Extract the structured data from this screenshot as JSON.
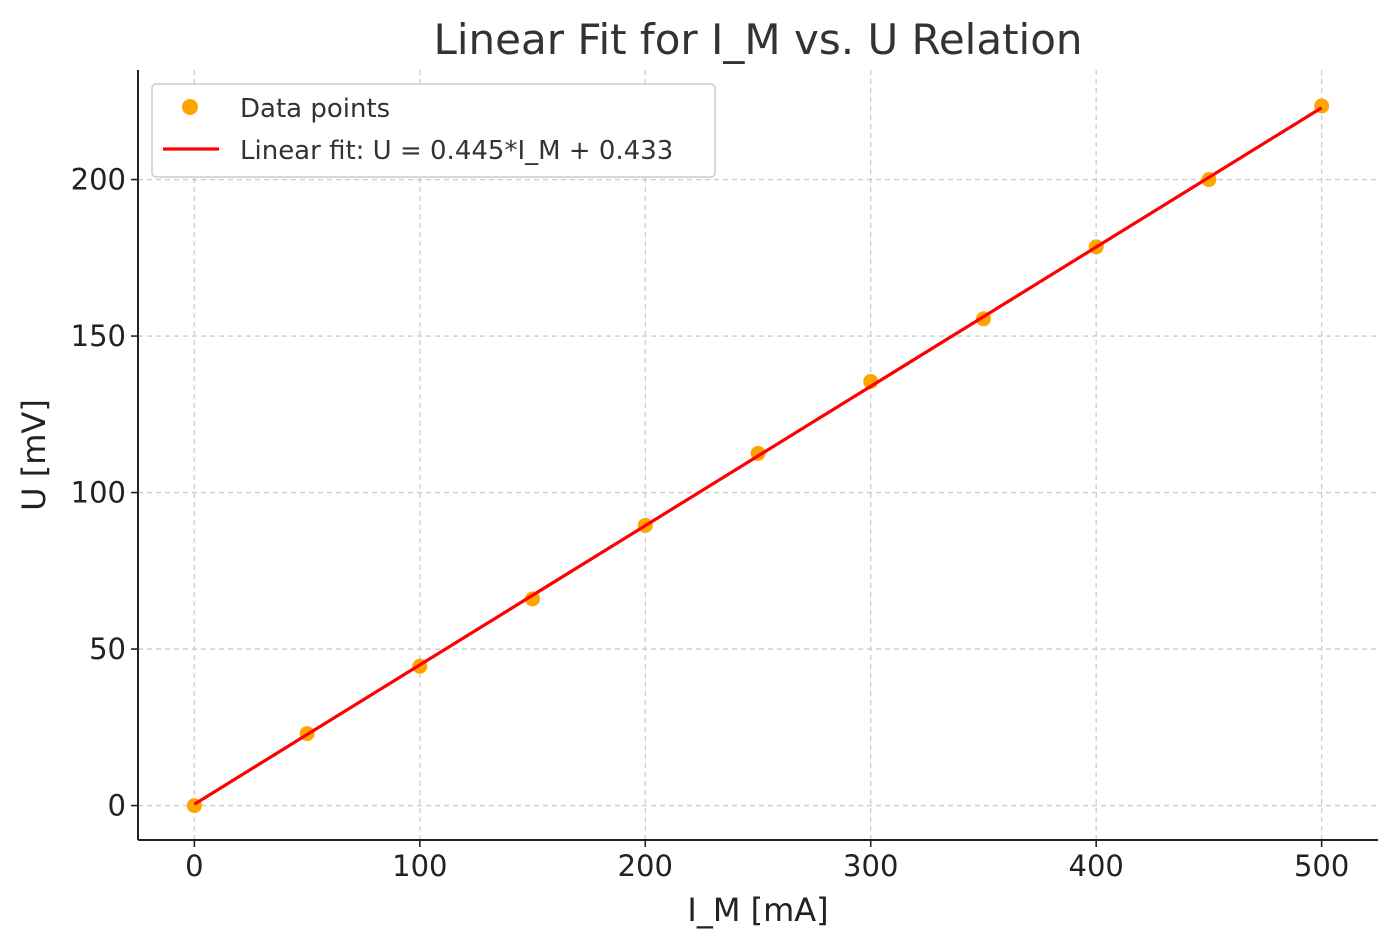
{
  "chart_data": {
    "type": "scatter",
    "title": "Linear Fit for I_M vs. U Relation",
    "xlabel": "I_M [mA]",
    "ylabel": "U [mV]",
    "xlim": [
      -25,
      525
    ],
    "ylim": [
      -11,
      235
    ],
    "xticks": [
      0,
      100,
      200,
      300,
      400,
      500
    ],
    "xtick_labels": [
      "0",
      "100",
      "200",
      "300",
      "400",
      "500"
    ],
    "yticks": [
      0,
      50,
      100,
      150,
      200
    ],
    "ytick_labels": [
      "0",
      "50",
      "100",
      "150",
      "200"
    ],
    "grid": true,
    "legend_position": "top-left",
    "series": [
      {
        "name": "Data points",
        "kind": "scatter",
        "color": "#FFA500",
        "x": [
          0,
          50,
          100,
          150,
          200,
          250,
          300,
          350,
          400,
          450,
          500
        ],
        "y": [
          0.0,
          23.0,
          44.5,
          66.0,
          89.5,
          112.5,
          135.5,
          155.5,
          178.5,
          200.0,
          223.5
        ]
      },
      {
        "name": "Linear fit: U = 0.445*I_M + 0.433",
        "kind": "line",
        "color": "#FF0000",
        "x": [
          0,
          500
        ],
        "y": [
          0.433,
          222.933
        ]
      }
    ]
  }
}
